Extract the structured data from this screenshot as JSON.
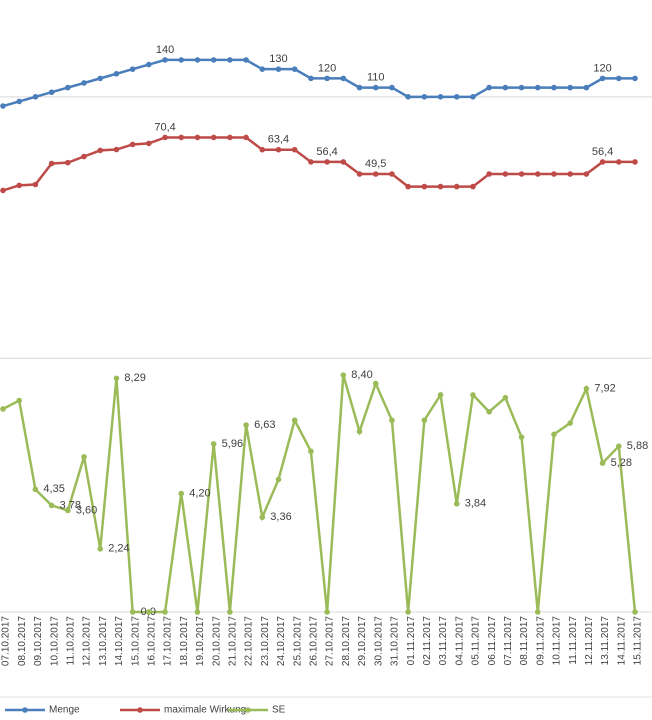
{
  "chart_data": [
    {
      "type": "line",
      "ylim": [
        -180,
        205
      ],
      "yticks": [
        100
      ],
      "y2lim": [
        -54,
        149
      ],
      "grid": true,
      "series": [
        {
          "name": "Menge",
          "color": "#4a7ebb",
          "axis": "y",
          "values": [
            90,
            95,
            100,
            105,
            110,
            115,
            120,
            125,
            130,
            135,
            140,
            140,
            140,
            140,
            140,
            140,
            130,
            130,
            130,
            120,
            120,
            120,
            110,
            110,
            110,
            100,
            100,
            100,
            100,
            100,
            110,
            110,
            110,
            110,
            110,
            110,
            110,
            120,
            120,
            120
          ],
          "value_labels": [
            null,
            null,
            null,
            null,
            null,
            null,
            null,
            null,
            null,
            null,
            "140",
            null,
            null,
            null,
            null,
            null,
            null,
            "130",
            null,
            null,
            "120",
            null,
            null,
            "110",
            null,
            null,
            null,
            null,
            null,
            null,
            null,
            null,
            null,
            null,
            null,
            null,
            null,
            "120",
            null,
            null
          ]
        },
        {
          "name": "maximale Wirkung",
          "color": "#be4b48",
          "axis": "y2",
          "values": [
            40.1,
            43,
            43.5,
            55.5,
            56,
            59.5,
            63,
            63.5,
            66.4,
            67,
            70.4,
            70.4,
            70.4,
            70.4,
            70.4,
            70.4,
            63.4,
            63.4,
            63.4,
            56.4,
            56.4,
            56.4,
            49.5,
            49.5,
            49.5,
            42.3,
            42.3,
            42.3,
            42.3,
            42.3,
            49.5,
            49.5,
            49.5,
            49.5,
            49.5,
            49.5,
            49.5,
            56.4,
            56.4,
            56.4
          ],
          "value_labels": [
            null,
            null,
            null,
            null,
            null,
            null,
            null,
            null,
            null,
            null,
            "70,4",
            null,
            null,
            null,
            null,
            null,
            null,
            "63,4",
            null,
            null,
            "56,4",
            null,
            null,
            "49,5",
            null,
            null,
            null,
            null,
            null,
            null,
            null,
            null,
            null,
            null,
            null,
            null,
            null,
            "56,4",
            null,
            null
          ]
        }
      ]
    },
    {
      "type": "line",
      "categories": [
        "07.10.2017",
        "08.10.2017",
        "09.10.2017",
        "10.10.2017",
        "11.10.2017",
        "12.10.2017",
        "13.10.2017",
        "14.10.2017",
        "15.10.2017",
        "16.10.2017",
        "17.10.2017",
        "18.10.2017",
        "19.10.2017",
        "20.10.2017",
        "21.10.2017",
        "22.10.2017",
        "23.10.2017",
        "24.10.2017",
        "25.10.2017",
        "26.10.2017",
        "27.10.2017",
        "28.10.2017",
        "29.10.2017",
        "30.10.2017",
        "31.10.2017",
        "01.11.2017",
        "02.11.2017",
        "03.11.2017",
        "04.11.2017",
        "05.11.2017",
        "06.11.2017",
        "07.11.2017",
        "08.11.2017",
        "09.11.2017",
        "10.11.2017",
        "11.11.2017",
        "12.11.2017",
        "13.11.2017",
        "14.11.2017",
        "15.11.2017"
      ],
      "ylim": [
        0,
        9.1
      ],
      "yticks": [
        0,
        9
      ],
      "grid": true,
      "series": [
        {
          "name": "SE",
          "color": "#9bbb59",
          "values": [
            7.2,
            7.5,
            4.35,
            3.78,
            3.6,
            5.5,
            2.24,
            8.29,
            0,
            0,
            0,
            4.2,
            0,
            5.96,
            0,
            6.63,
            3.36,
            4.7,
            6.8,
            5.7,
            0,
            8.4,
            6.4,
            8.1,
            6.8,
            0,
            6.8,
            7.7,
            3.84,
            7.7,
            7.1,
            7.6,
            6.2,
            0,
            6.3,
            6.7,
            7.92,
            5.28,
            5.88,
            0
          ],
          "value_labels": [
            null,
            null,
            "4,35",
            "3,78",
            "3,60",
            null,
            "2,24",
            "8,29",
            "0,0",
            null,
            null,
            "4,20",
            null,
            "5,96",
            null,
            "6,63",
            "3,36",
            null,
            null,
            null,
            null,
            "8,40",
            null,
            null,
            null,
            null,
            null,
            null,
            "3,84",
            null,
            null,
            null,
            null,
            null,
            null,
            null,
            "7,92",
            "5,28",
            "5,88",
            null
          ]
        }
      ]
    }
  ]
}
